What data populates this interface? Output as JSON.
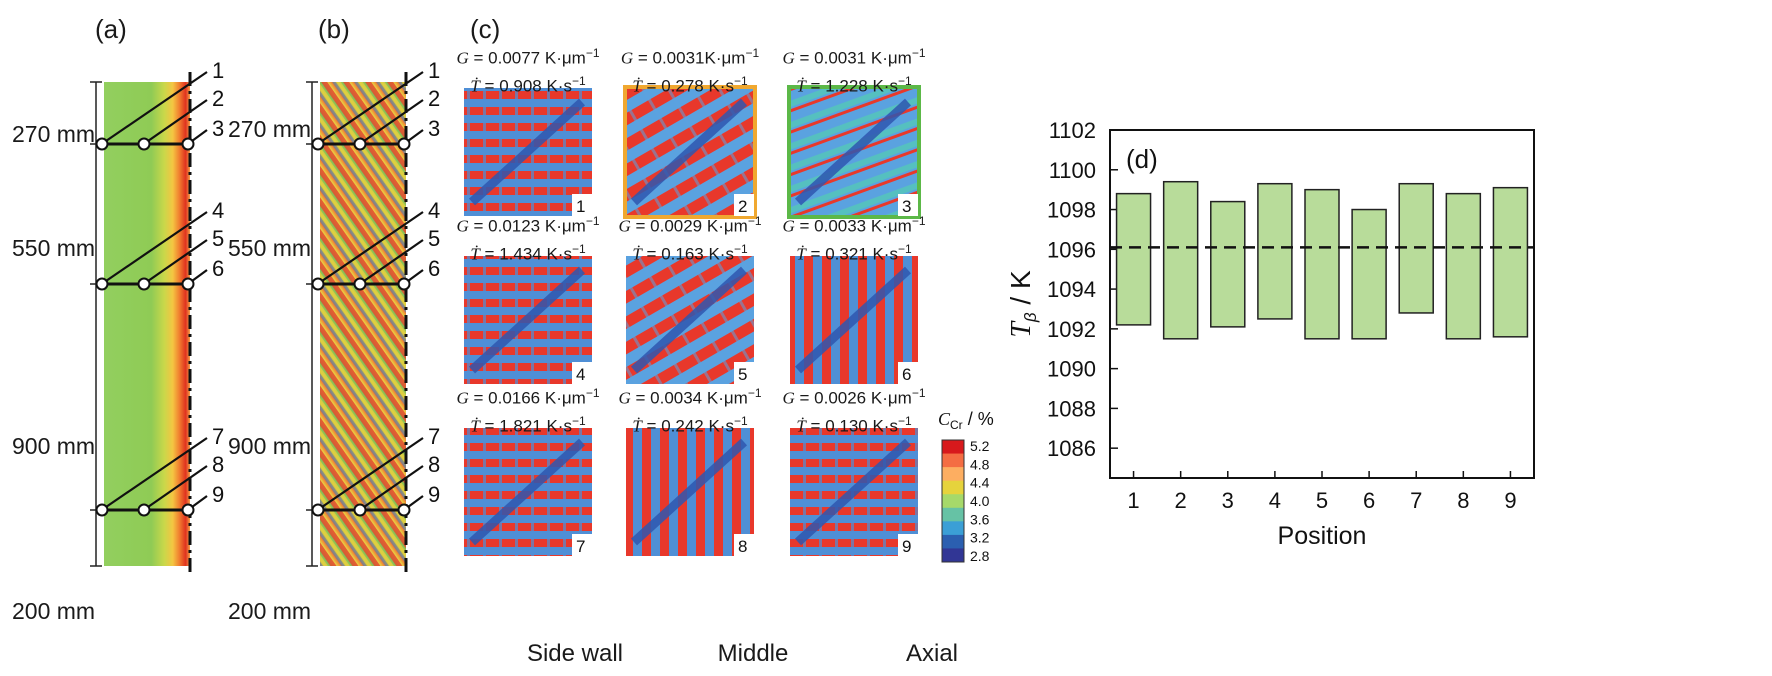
{
  "panels": {
    "a": "(a)",
    "b": "(b)",
    "c": "(c)",
    "d": "(d)"
  },
  "casting": {
    "segments": [
      "270 mm",
      "550 mm",
      "900 mm",
      "200 mm"
    ],
    "markers": [
      "1",
      "2",
      "3",
      "4",
      "5",
      "6",
      "7",
      "8",
      "9"
    ]
  },
  "micro": {
    "cells": [
      {
        "id": "1",
        "G": "0.0077 K·μm",
        "T": "0.908 K·s"
      },
      {
        "id": "2",
        "G": "0.0031K·μm",
        "T": "0.278 K·s"
      },
      {
        "id": "3",
        "G": "0.0031 K·μm",
        "T": "1.228 K·s"
      },
      {
        "id": "4",
        "G": "0.0123 K·μm",
        "T": "1.434 K·s"
      },
      {
        "id": "5",
        "G": "0.0029 K·μm",
        "T": "0.163 K·s"
      },
      {
        "id": "6",
        "G": "0.0033 K·μm",
        "T": "0.321 K·s"
      },
      {
        "id": "7",
        "G": "0.0166 K·μm",
        "T": "1.821 K·s"
      },
      {
        "id": "8",
        "G": "0.0034 K·μm",
        "T": "0.242 K·s"
      },
      {
        "id": "9",
        "G": "0.0026 K·μm",
        "T": "0.130 K·s"
      }
    ],
    "columns": [
      "Side wall",
      "Middle",
      "Axial"
    ],
    "highlight": {
      "2": "#f0a830",
      "3": "#5cb848"
    },
    "colorbar": {
      "title": "C",
      "title_sub": "Cr",
      "title_unit": " / %",
      "ticks": [
        "5.2",
        "4.8",
        "4.4",
        "4.0",
        "3.6",
        "3.2",
        "2.8"
      ],
      "colors": [
        "#d7191c",
        "#f46d43",
        "#fdae61",
        "#e6d33c",
        "#a6d96a",
        "#66c2a5",
        "#3b9fd6",
        "#2b5fb0",
        "#313695"
      ]
    }
  },
  "chart_data": {
    "type": "bar",
    "title": "(d)",
    "xlabel": "Position",
    "ylabel": "T",
    "ylabel_sub": "β",
    "ylabel_unit": " / K",
    "categories": [
      "1",
      "2",
      "3",
      "4",
      "5",
      "6",
      "7",
      "8",
      "9"
    ],
    "ranges": [
      [
        1092.2,
        1098.8
      ],
      [
        1091.5,
        1099.4
      ],
      [
        1092.1,
        1098.4
      ],
      [
        1092.5,
        1099.3
      ],
      [
        1091.5,
        1099.0
      ],
      [
        1091.5,
        1098.0
      ],
      [
        1092.8,
        1099.3
      ],
      [
        1091.5,
        1098.8
      ],
      [
        1091.6,
        1099.1
      ]
    ],
    "reference_line": 1096.1,
    "ylim": [
      1084.5,
      1102
    ],
    "yticks": [
      1086,
      1088,
      1090,
      1092,
      1094,
      1096,
      1098,
      1100,
      1102
    ],
    "bar_color": "#b8dc9a",
    "grid": false
  }
}
